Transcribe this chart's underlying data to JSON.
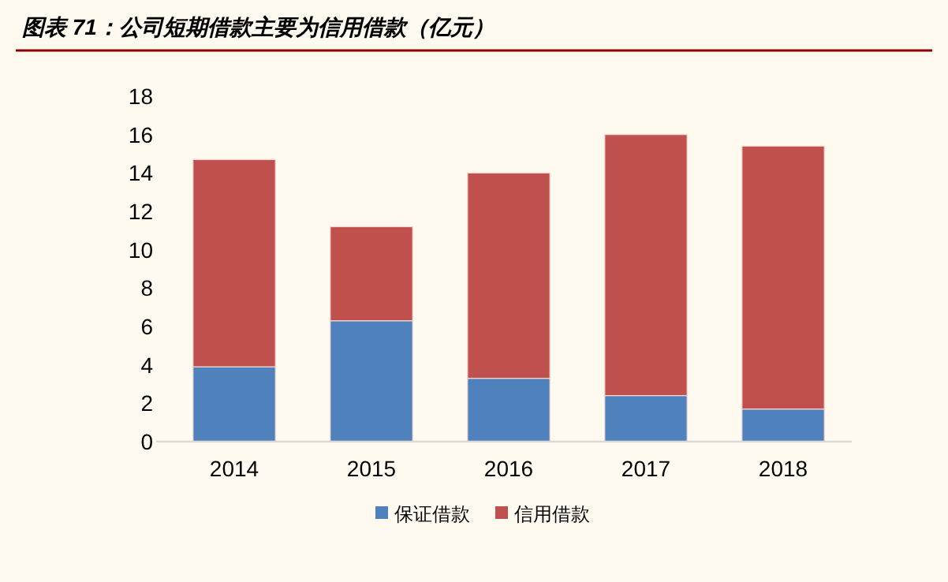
{
  "chart_data": {
    "type": "bar",
    "title": "图表 71：公司短期借款主要为信用借款（亿元）",
    "stacked": true,
    "categories": [
      "2014",
      "2015",
      "2016",
      "2017",
      "2018"
    ],
    "series": [
      {
        "name": "保证借款",
        "color": "#4f81bd",
        "values": [
          3.9,
          6.3,
          3.3,
          2.4,
          1.7
        ]
      },
      {
        "name": "信用借款",
        "color": "#c0504d",
        "values": [
          10.8,
          4.9,
          10.7,
          13.6,
          13.7
        ]
      }
    ],
    "ylim": [
      0,
      18
    ],
    "yticks": [
      0,
      2,
      4,
      6,
      8,
      10,
      12,
      14,
      16,
      18
    ],
    "grid": false,
    "legend": "bottom"
  }
}
